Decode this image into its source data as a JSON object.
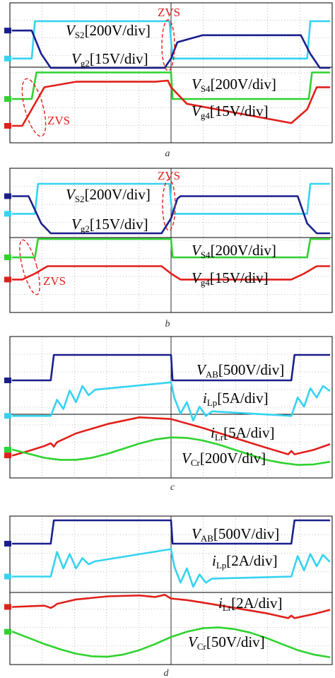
{
  "colors": {
    "dark_blue": "#1a1f8c",
    "cyan": "#35d3f0",
    "red": "#e0201b",
    "green": "#2fd22f"
  },
  "chart_data": [
    {
      "type": "line",
      "panel": "a",
      "caption": "a",
      "xlabel": "",
      "ylabel": "",
      "grid": true,
      "annotations": [
        "ZVS",
        "ZVS"
      ],
      "series": [
        {
          "name": "V_S2[200V/div]",
          "label_main": "V",
          "label_sub": "S2",
          "label_rest": "[200V/div]",
          "color": "cyan",
          "x": [
            0,
            0.06,
            0.07,
            0.495,
            0.5,
            0.505,
            0.93,
            0.94,
            1.0
          ],
          "y": [
            0.2,
            0.2,
            1.0,
            1.0,
            0.6,
            0.2,
            0.2,
            1.0,
            1.0
          ]
        },
        {
          "name": "V_g2[15V/div]",
          "label_main": "V",
          "label_sub": "g2",
          "label_rest": "[15V/div]",
          "color": "dark_blue",
          "x": [
            0,
            0.06,
            0.09,
            0.12,
            0.48,
            0.5,
            0.52,
            0.6,
            0.91,
            0.94,
            0.97,
            1.0
          ],
          "y": [
            0.8,
            0.8,
            0.3,
            0.0,
            0.0,
            0.2,
            0.55,
            0.7,
            0.7,
            0.3,
            0.0,
            0.0
          ]
        },
        {
          "name": "V_S4[200V/div]",
          "label_main": "V",
          "label_sub": "S4",
          "label_rest": "[200V/div]",
          "color": "green",
          "x": [
            0,
            0.06,
            0.075,
            0.5,
            0.505,
            0.935,
            0.945,
            1.0
          ],
          "y": [
            0.2,
            0.2,
            0.95,
            0.95,
            0.2,
            0.2,
            0.95,
            0.95
          ]
        },
        {
          "name": "V_g4[15V/div]",
          "label_main": "V",
          "label_sub": "g4",
          "label_rest": "[15V/div]",
          "color": "red",
          "x": [
            0,
            0.03,
            0.06,
            0.1,
            0.2,
            0.45,
            0.49,
            0.5,
            0.55,
            0.88,
            0.93,
            0.96,
            1.0
          ],
          "y": [
            0.0,
            0.0,
            0.3,
            0.7,
            0.8,
            0.8,
            0.82,
            0.7,
            0.4,
            0.05,
            0.3,
            0.7,
            0.7
          ]
        }
      ]
    },
    {
      "type": "line",
      "panel": "b",
      "caption": "b",
      "xlabel": "",
      "ylabel": "",
      "grid": true,
      "annotations": [
        "ZVS",
        "ZVS"
      ],
      "series": [
        {
          "name": "V_S2[200V/div]",
          "label_main": "V",
          "label_sub": "S2",
          "label_rest": "[200V/div]",
          "color": "cyan",
          "x": [
            0,
            0.07,
            0.08,
            0.495,
            0.5,
            0.505,
            0.93,
            0.94,
            1.0
          ],
          "y": [
            0.2,
            0.2,
            1.0,
            1.0,
            0.5,
            0.2,
            0.2,
            1.0,
            1.0
          ]
        },
        {
          "name": "V_g2[15V/div]",
          "label_main": "V",
          "label_sub": "g2",
          "label_rest": "[15V/div]",
          "color": "dark_blue",
          "x": [
            0,
            0.05,
            0.09,
            0.12,
            0.47,
            0.5,
            0.52,
            0.53,
            0.9,
            0.93,
            0.96,
            1.0
          ],
          "y": [
            0.75,
            0.75,
            0.2,
            0.0,
            0.0,
            0.3,
            0.7,
            0.75,
            0.75,
            0.2,
            0.0,
            0.0
          ]
        },
        {
          "name": "V_S4[200V/div]",
          "label_main": "V",
          "label_sub": "S4",
          "label_rest": "[200V/div]",
          "color": "green",
          "x": [
            0,
            0.07,
            0.08,
            0.5,
            0.505,
            0.93,
            0.94,
            1.0
          ],
          "y": [
            0.5,
            0.5,
            1.0,
            1.0,
            0.5,
            0.5,
            1.0,
            1.0
          ]
        },
        {
          "name": "V_g4[15V/div]",
          "label_main": "V",
          "label_sub": "g4",
          "label_rest": "[15V/div]",
          "color": "red",
          "x": [
            0,
            0.03,
            0.07,
            0.11,
            0.47,
            0.5,
            0.53,
            0.88,
            0.92,
            0.96,
            1.0
          ],
          "y": [
            0.3,
            0.3,
            0.5,
            0.75,
            0.75,
            0.5,
            0.3,
            0.3,
            0.5,
            0.75,
            0.75
          ]
        }
      ]
    },
    {
      "type": "line",
      "panel": "c",
      "caption": "c",
      "xlabel": "",
      "ylabel": "",
      "grid": true,
      "series": [
        {
          "name": "V_AB[500V/div]",
          "label_main": "V",
          "label_sub": "AB",
          "label_rest": "[500V/div]",
          "color": "dark_blue",
          "x": [
            0,
            0.12,
            0.13,
            0.5,
            0.505,
            0.88,
            0.89,
            1.0
          ],
          "y": [
            0.0,
            0.0,
            1.0,
            1.0,
            0.0,
            0.0,
            1.0,
            1.0
          ]
        },
        {
          "name": "i_Lp[5A/div]",
          "label_main": "i",
          "label_sub": "Lp",
          "label_rest": "[5A/div]",
          "color": "cyan",
          "x": [
            0,
            0.12,
            0.14,
            0.16,
            0.18,
            0.2,
            0.22,
            0.24,
            0.26,
            0.5,
            0.51,
            0.53,
            0.55,
            0.57,
            0.59,
            0.61,
            0.63,
            0.88,
            0.9,
            0.92,
            0.94,
            0.96,
            0.98,
            1.0
          ],
          "y": [
            0.15,
            0.15,
            0.5,
            0.3,
            0.7,
            0.45,
            0.8,
            0.6,
            0.72,
            0.88,
            0.55,
            0.2,
            0.45,
            0.05,
            0.35,
            0.15,
            0.25,
            0.15,
            0.55,
            0.35,
            0.75,
            0.55,
            0.8,
            0.7
          ]
        },
        {
          "name": "i_Lr[5A/div]",
          "label_main": "i",
          "label_sub": "Lr",
          "label_rest": "[5A/div]",
          "color": "red",
          "x": [
            0,
            0.05,
            0.1,
            0.12,
            0.13,
            0.14,
            0.2,
            0.3,
            0.4,
            0.5,
            0.6,
            0.7,
            0.8,
            0.87,
            0.88,
            0.89,
            0.95,
            1.0
          ],
          "y": [
            0.28,
            0.36,
            0.45,
            0.5,
            0.44,
            0.52,
            0.68,
            0.85,
            0.97,
            0.94,
            0.78,
            0.6,
            0.42,
            0.3,
            0.36,
            0.3,
            0.38,
            0.48
          ]
        },
        {
          "name": "V_Cr[200V/div]",
          "label_main": "V",
          "label_sub": "Cr",
          "label_rest": "[200V/div]",
          "color": "green",
          "x": [
            0,
            0.05,
            0.1,
            0.15,
            0.2,
            0.25,
            0.3,
            0.35,
            0.4,
            0.45,
            0.5,
            0.55,
            0.6,
            0.65,
            0.7,
            0.75,
            0.8,
            0.85,
            0.9,
            0.95,
            1.0
          ],
          "y": [
            0.5,
            0.42,
            0.34,
            0.3,
            0.3,
            0.34,
            0.42,
            0.52,
            0.62,
            0.7,
            0.74,
            0.73,
            0.68,
            0.6,
            0.5,
            0.4,
            0.3,
            0.24,
            0.2,
            0.21,
            0.26
          ]
        }
      ]
    },
    {
      "type": "line",
      "panel": "d",
      "caption": "d",
      "xlabel": "",
      "ylabel": "",
      "grid": true,
      "series": [
        {
          "name": "V_AB[500V/div]",
          "label_main": "V",
          "label_sub": "AB",
          "label_rest": "[500V/div]",
          "color": "dark_blue",
          "x": [
            0,
            0.12,
            0.13,
            0.5,
            0.505,
            0.88,
            0.89,
            1.0
          ],
          "y": [
            0.0,
            0.0,
            1.0,
            1.0,
            0.0,
            0.0,
            1.0,
            1.0
          ]
        },
        {
          "name": "i_Lp[2A/div]",
          "label_main": "i",
          "label_sub": "Lp",
          "label_rest": "[2A/div]",
          "color": "cyan",
          "x": [
            0,
            0.12,
            0.14,
            0.16,
            0.18,
            0.2,
            0.22,
            0.24,
            0.26,
            0.5,
            0.51,
            0.53,
            0.55,
            0.57,
            0.59,
            0.61,
            0.63,
            0.88,
            0.9,
            0.92,
            0.94,
            0.96,
            0.98,
            1.0
          ],
          "y": [
            0.25,
            0.25,
            0.85,
            0.45,
            0.8,
            0.45,
            0.7,
            0.55,
            0.62,
            0.92,
            0.5,
            0.1,
            0.45,
            0.0,
            0.3,
            0.1,
            0.2,
            0.25,
            0.75,
            0.4,
            0.8,
            0.5,
            0.78,
            0.62
          ]
        },
        {
          "name": "i_Lr[2A/div]",
          "label_main": "i",
          "label_sub": "Lr",
          "label_rest": "[2A/div]",
          "color": "red",
          "x": [
            0,
            0.05,
            0.1,
            0.12,
            0.13,
            0.14,
            0.2,
            0.3,
            0.4,
            0.45,
            0.48,
            0.5,
            0.55,
            0.6,
            0.7,
            0.8,
            0.87,
            0.88,
            0.89,
            0.95,
            1.0
          ],
          "y": [
            0.58,
            0.6,
            0.62,
            0.55,
            0.6,
            0.68,
            0.82,
            0.92,
            0.95,
            0.9,
            0.97,
            0.85,
            0.8,
            0.72,
            0.55,
            0.38,
            0.22,
            0.3,
            0.22,
            0.35,
            0.48
          ]
        },
        {
          "name": "V_Cr[50V/div]",
          "label_main": "V",
          "label_sub": "Cr",
          "label_rest": "[50V/div]",
          "color": "green",
          "x": [
            0,
            0.05,
            0.1,
            0.15,
            0.2,
            0.25,
            0.3,
            0.35,
            0.4,
            0.45,
            0.5,
            0.55,
            0.6,
            0.65,
            0.7,
            0.75,
            0.8,
            0.85,
            0.9,
            0.95,
            1.0
          ],
          "y": [
            0.62,
            0.48,
            0.34,
            0.22,
            0.12,
            0.06,
            0.05,
            0.1,
            0.2,
            0.34,
            0.5,
            0.62,
            0.7,
            0.72,
            0.68,
            0.6,
            0.48,
            0.34,
            0.2,
            0.1,
            0.04
          ]
        }
      ]
    }
  ]
}
